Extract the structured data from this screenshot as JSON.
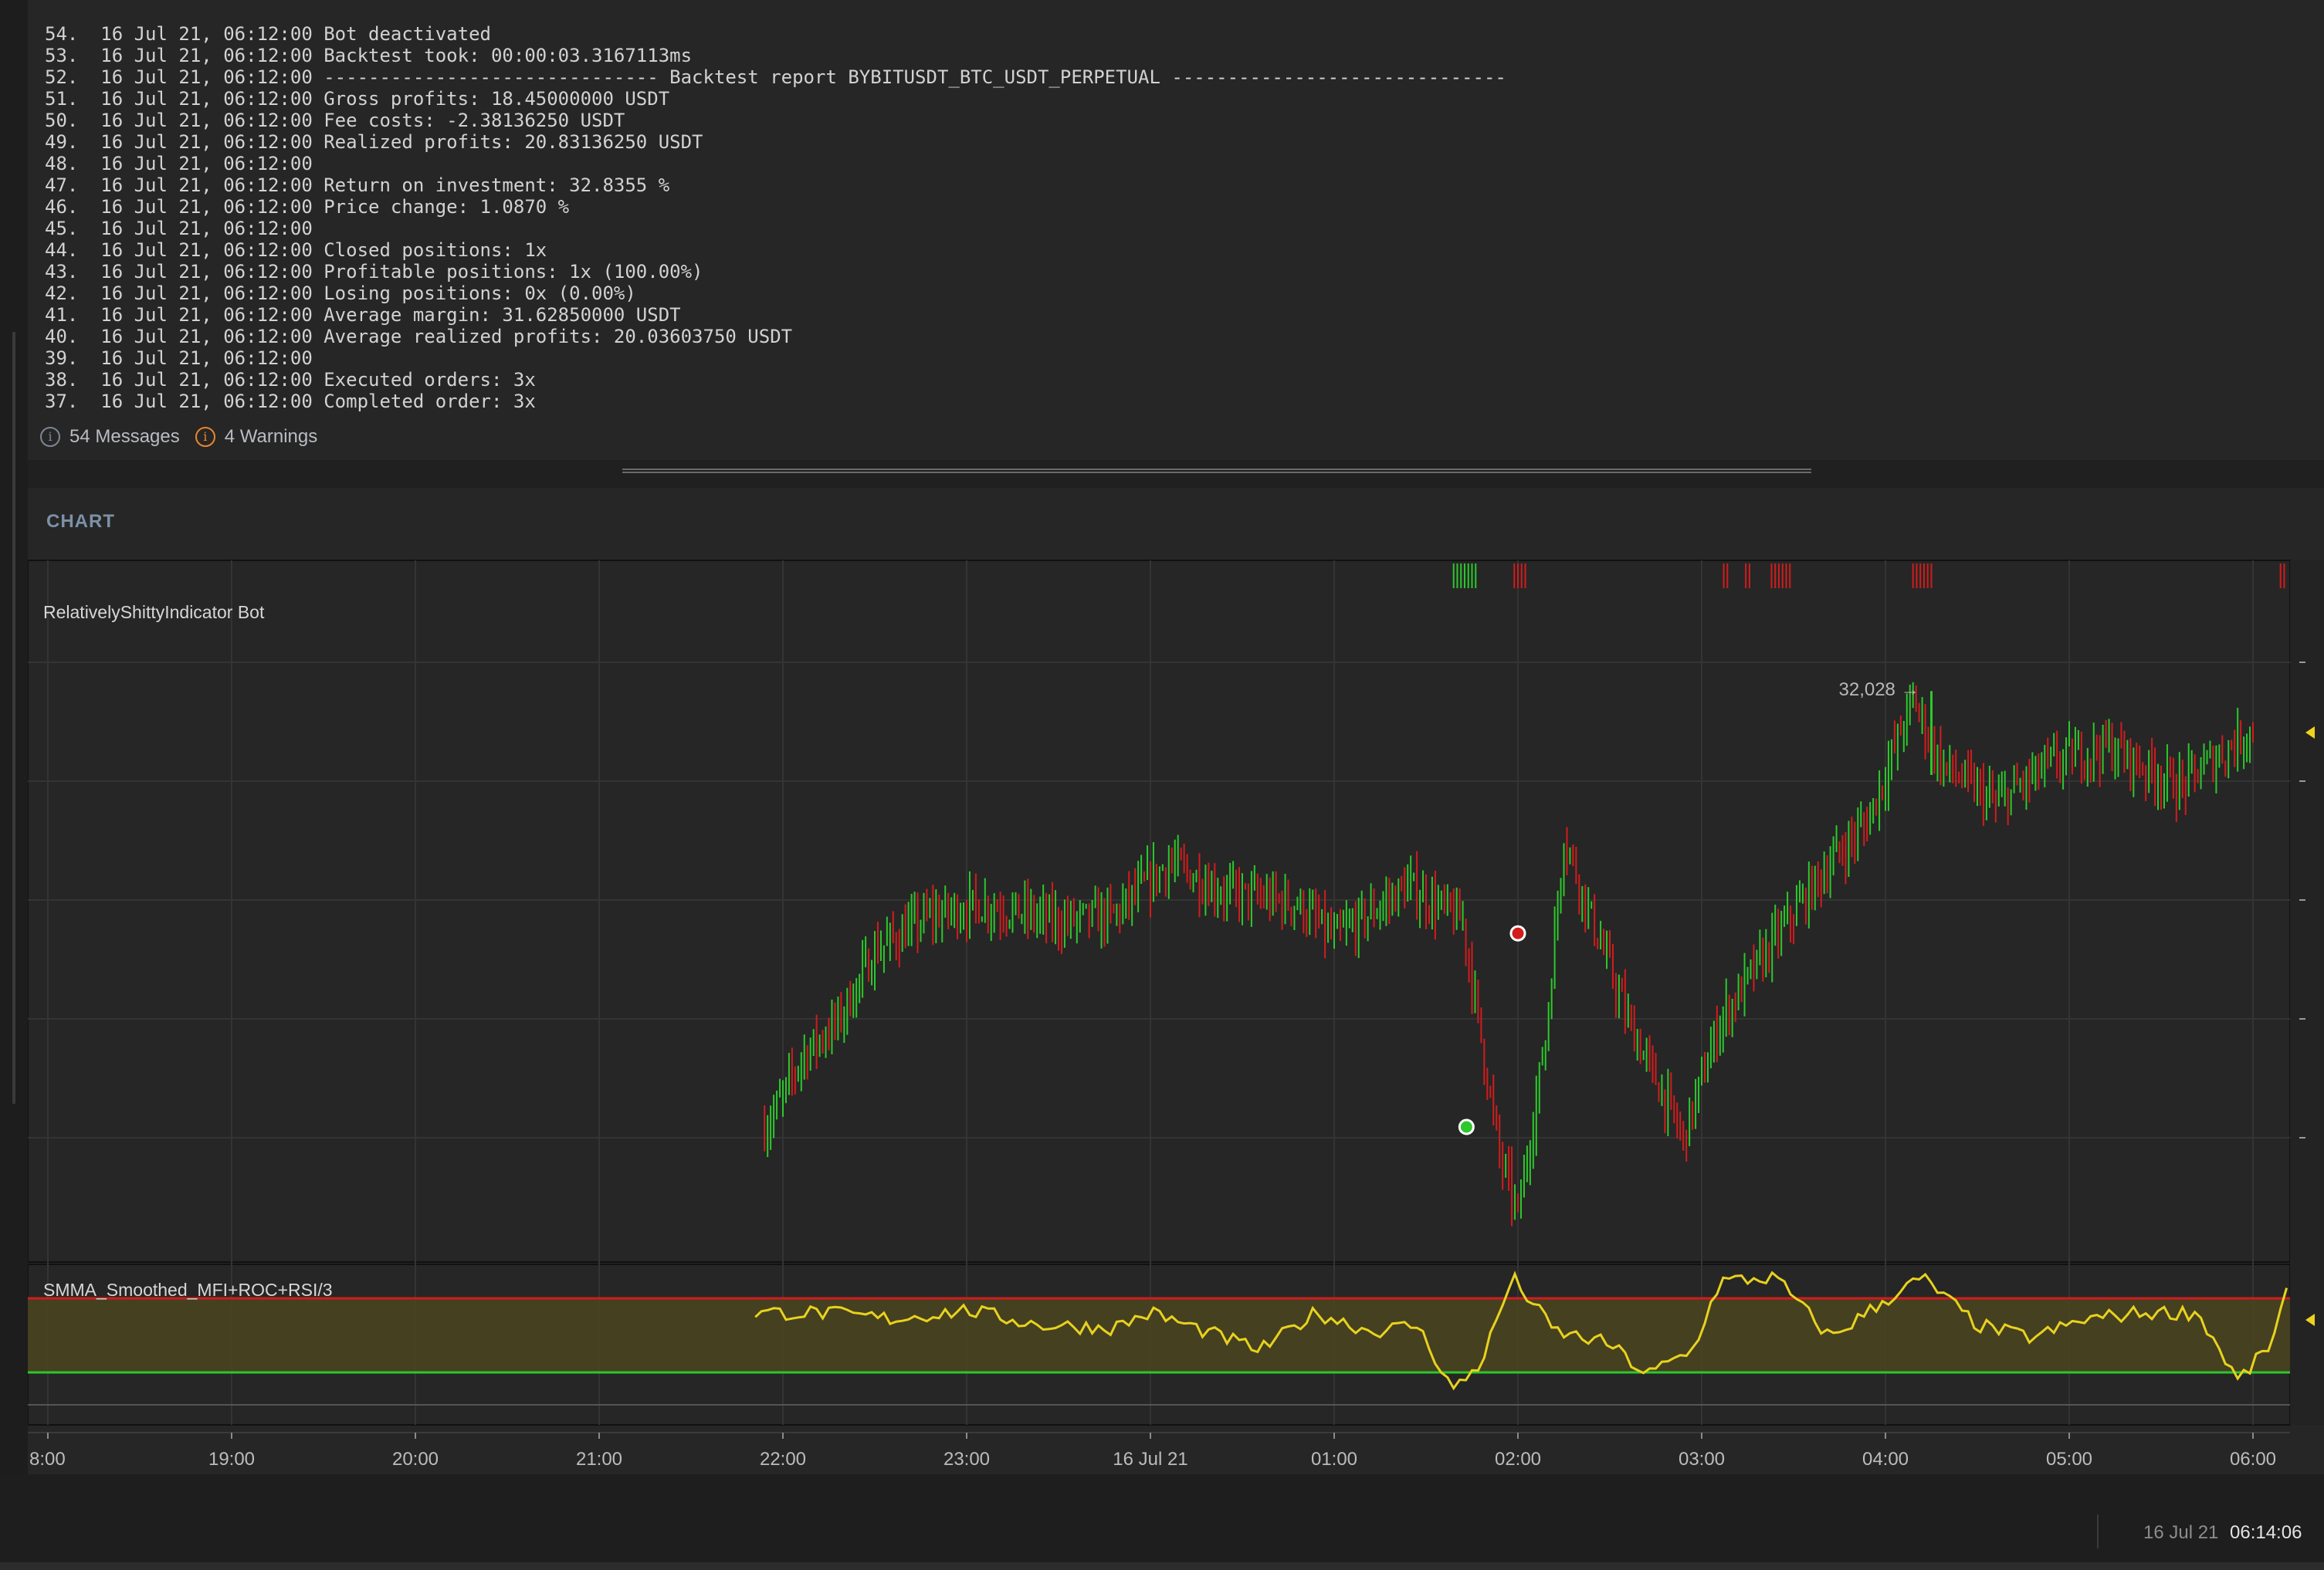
{
  "log": {
    "lines": [
      "54.  16 Jul 21, 06:12:00 Bot deactivated",
      "53.  16 Jul 21, 06:12:00 Backtest took: 00:00:03.3167113ms",
      "52.  16 Jul 21, 06:12:00 ------------------------------ Backtest report BYBITUSDT_BTC_USDT_PERPETUAL ------------------------------",
      "51.  16 Jul 21, 06:12:00 Gross profits: 18.45000000 USDT",
      "50.  16 Jul 21, 06:12:00 Fee costs: -2.38136250 USDT",
      "49.  16 Jul 21, 06:12:00 Realized profits: 20.83136250 USDT",
      "48.  16 Jul 21, 06:12:00",
      "47.  16 Jul 21, 06:12:00 Return on investment: 32.8355 %",
      "46.  16 Jul 21, 06:12:00 Price change: 1.0870 %",
      "45.  16 Jul 21, 06:12:00",
      "44.  16 Jul 21, 06:12:00 Closed positions: 1x",
      "43.  16 Jul 21, 06:12:00 Profitable positions: 1x (100.00%)",
      "42.  16 Jul 21, 06:12:00 Losing positions: 0x (0.00%)",
      "41.  16 Jul 21, 06:12:00 Average margin: 31.62850000 USDT",
      "40.  16 Jul 21, 06:12:00 Average realized profits: 20.03603750 USDT",
      "39.  16 Jul 21, 06:12:00",
      "38.  16 Jul 21, 06:12:00 Executed orders: 3x",
      "37.  16 Jul 21, 06:12:00 Completed order: 3x"
    ],
    "messages_label": "54 Messages",
    "warnings_label": "4 Warnings"
  },
  "chart": {
    "panel_title": "CHART",
    "main_pane_label": "RelativelyShittyIndicator Bot",
    "indicator_pane_label": "SMMA_Smoothed_MFI+ROC+RSI/3",
    "price_marker_label": "32,028",
    "x_ticks": [
      "8:00",
      "19:00",
      "20:00",
      "21:00",
      "22:00",
      "23:00",
      "16 Jul 21",
      "01:00",
      "02:00",
      "03:00",
      "04:00",
      "05:00",
      "06:00"
    ],
    "colors": {
      "up": "#2cc82c",
      "down": "#d21c1c",
      "indicator": "#e8d21e",
      "upper_band": "#d21c1c",
      "lower_band": "#2cc82c",
      "band_fill": "#4b4520",
      "marker": "#f0d21e"
    }
  },
  "chart_data": {
    "type": "candlestick",
    "x_ticks": [
      "8:00",
      "19:00",
      "20:00",
      "21:00",
      "22:00",
      "23:00",
      "16 Jul 21",
      "01:00",
      "02:00",
      "03:00",
      "04:00",
      "05:00",
      "06:00"
    ],
    "price_shape": [
      [
        21.9,
        0.2
      ],
      [
        22.0,
        0.25
      ],
      [
        22.1,
        0.32
      ],
      [
        22.3,
        0.38
      ],
      [
        22.5,
        0.5
      ],
      [
        22.8,
        0.56
      ],
      [
        23.1,
        0.58
      ],
      [
        23.5,
        0.55
      ],
      [
        23.8,
        0.56
      ],
      [
        24.1,
        0.65
      ],
      [
        24.4,
        0.6
      ],
      [
        24.8,
        0.58
      ],
      [
        25.0,
        0.52
      ],
      [
        25.4,
        0.61
      ],
      [
        25.7,
        0.55
      ],
      [
        25.9,
        0.15
      ],
      [
        26.0,
        0.05
      ],
      [
        26.15,
        0.35
      ],
      [
        26.25,
        0.7
      ],
      [
        26.35,
        0.6
      ],
      [
        26.6,
        0.38
      ],
      [
        26.9,
        0.18
      ],
      [
        27.1,
        0.38
      ],
      [
        27.4,
        0.52
      ],
      [
        27.7,
        0.65
      ],
      [
        27.9,
        0.72
      ],
      [
        28.15,
        0.93
      ],
      [
        28.3,
        0.82
      ],
      [
        28.6,
        0.75
      ],
      [
        28.9,
        0.82
      ],
      [
        29.2,
        0.85
      ],
      [
        29.6,
        0.78
      ],
      [
        30.0,
        0.88
      ]
    ],
    "indicator_shape": [
      [
        21.85,
        0.7
      ],
      [
        22.2,
        0.7
      ],
      [
        22.6,
        0.65
      ],
      [
        23.0,
        0.72
      ],
      [
        23.4,
        0.6
      ],
      [
        23.8,
        0.58
      ],
      [
        24.0,
        0.7
      ],
      [
        24.3,
        0.55
      ],
      [
        24.6,
        0.4
      ],
      [
        24.9,
        0.7
      ],
      [
        25.2,
        0.55
      ],
      [
        25.45,
        0.6
      ],
      [
        25.65,
        0.08
      ],
      [
        25.8,
        0.3
      ],
      [
        25.97,
        0.98
      ],
      [
        26.2,
        0.55
      ],
      [
        26.5,
        0.45
      ],
      [
        26.7,
        0.2
      ],
      [
        26.95,
        0.4
      ],
      [
        27.1,
        0.95
      ],
      [
        27.4,
        0.98
      ],
      [
        27.7,
        0.5
      ],
      [
        28.0,
        0.8
      ],
      [
        28.2,
        0.98
      ],
      [
        28.5,
        0.6
      ],
      [
        28.8,
        0.5
      ],
      [
        29.1,
        0.65
      ],
      [
        29.4,
        0.7
      ],
      [
        29.7,
        0.7
      ],
      [
        29.92,
        0.15
      ],
      [
        30.1,
        0.45
      ],
      [
        30.2,
        0.95
      ]
    ],
    "price_high": 32028,
    "trades": [
      {
        "side": "buy",
        "time": "01:40"
      },
      {
        "side": "sell",
        "time": "02:00"
      }
    ]
  },
  "status_bar": {
    "date": "16 Jul 21",
    "time": "06:14:06"
  }
}
